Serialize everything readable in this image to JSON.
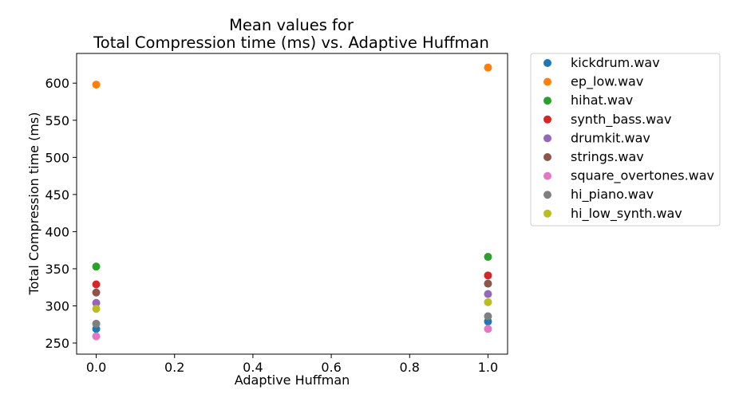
{
  "chart_data": {
    "type": "scatter",
    "title": [
      "Mean values for",
      "Total Compression time (ms) vs. Adaptive Huffman"
    ],
    "xlabel": "Adaptive Huffman",
    "ylabel": "Total Compression time (ms)",
    "xlim": [
      -0.05,
      1.05
    ],
    "ylim": [
      235,
      640
    ],
    "xticks": [
      0.0,
      0.2,
      0.4,
      0.6,
      0.8,
      1.0
    ],
    "xtick_labels": [
      "0.0",
      "0.2",
      "0.4",
      "0.6",
      "0.8",
      "1.0"
    ],
    "yticks": [
      250,
      300,
      350,
      400,
      450,
      500,
      550,
      600
    ],
    "ytick_labels": [
      "250",
      "300",
      "350",
      "400",
      "450",
      "500",
      "550",
      "600"
    ],
    "grid": false,
    "legend_position": "outside-right",
    "series": [
      {
        "name": "kickdrum.wav",
        "color": "#1f77b4",
        "x": [
          0,
          1
        ],
        "y": [
          269,
          279
        ]
      },
      {
        "name": "ep_low.wav",
        "color": "#ff7f0e",
        "x": [
          0,
          1
        ],
        "y": [
          598,
          621
        ]
      },
      {
        "name": "hihat.wav",
        "color": "#2ca02c",
        "x": [
          0,
          1
        ],
        "y": [
          353,
          366
        ]
      },
      {
        "name": "synth_bass.wav",
        "color": "#d62728",
        "x": [
          0,
          1
        ],
        "y": [
          329,
          341
        ]
      },
      {
        "name": "drumkit.wav",
        "color": "#9467bd",
        "x": [
          0,
          1
        ],
        "y": [
          304,
          316
        ]
      },
      {
        "name": "strings.wav",
        "color": "#8c564b",
        "x": [
          0,
          1
        ],
        "y": [
          318,
          330
        ]
      },
      {
        "name": "square_overtones.wav",
        "color": "#e377c2",
        "x": [
          0,
          1
        ],
        "y": [
          259,
          269
        ]
      },
      {
        "name": "hi_piano.wav",
        "color": "#7f7f7f",
        "x": [
          0,
          1
        ],
        "y": [
          276,
          286
        ]
      },
      {
        "name": "hi_low_synth.wav",
        "color": "#bcbd22",
        "x": [
          0,
          1
        ],
        "y": [
          296,
          305
        ]
      }
    ]
  }
}
